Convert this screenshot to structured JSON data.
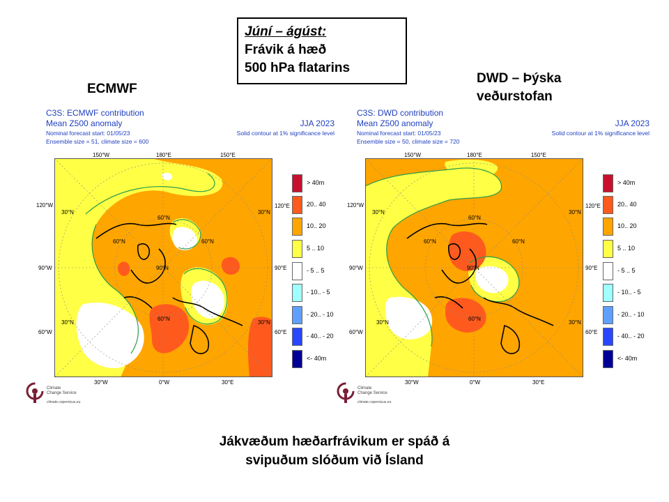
{
  "slide": {
    "title_lines": [
      "Júní – ágúst:",
      "Frávik á hæð",
      "500 hPa flatarins"
    ],
    "footer_lines": [
      "Jákvæðum hæðarfrávikum er spáð á",
      "svipuðum slóðum við Ísland"
    ]
  },
  "panels": [
    {
      "model_title_lines": [
        "ECMWF"
      ],
      "header_line1": "C3S: ECMWF contribution",
      "header_line2": "Mean Z500 anomaly",
      "season": "JJA 2023",
      "sig_note": "Solid contour at 1% significance level",
      "forecast_start": "Nominal forecast start: 01/05/23",
      "ensemble": "Ensemble size = 51, climate size = 600"
    },
    {
      "model_title_lines": [
        "DWD – Þýska",
        "veðurstofan"
      ],
      "header_line1": "C3S: DWD contribution",
      "header_line2": "Mean Z500 anomaly",
      "season": "JJA 2023",
      "sig_note": "Solid contour at 1% significance level",
      "forecast_start": "Nominal forecast start: 01/05/23",
      "ensemble": "Ensemble size = 50, climate size = 720"
    }
  ],
  "map_labels": {
    "top": [
      "150°W",
      "180°E",
      "150°E"
    ],
    "left": [
      "120°W",
      "90°W",
      "60°W"
    ],
    "right": [
      "120°E",
      "90°E",
      "60°E"
    ],
    "bottom": [
      "30°W",
      "0°W",
      "30°E"
    ],
    "lat_30": "30°N",
    "lat_60": "60°N",
    "lat_90": "90°N"
  },
  "legend": [
    {
      "label": "> 40m",
      "color": "#c8102e"
    },
    {
      "label": "20.. 40",
      "color": "#ff5a1e"
    },
    {
      "label": "10.. 20",
      "color": "#ffa500"
    },
    {
      "label": "5 .. 10",
      "color": "#ffff46"
    },
    {
      "label": "- 5 .. 5",
      "color": "#ffffff"
    },
    {
      "label": "- 10.. - 5",
      "color": "#a0ffff"
    },
    {
      "label": "- 20.. - 10",
      "color": "#5fa0ff"
    },
    {
      "label": "- 40.. - 20",
      "color": "#2846ff"
    },
    {
      "label": "<- 40m",
      "color": "#000096"
    }
  ],
  "logo": {
    "line1": "Climate",
    "line2": "Change Service",
    "url": "climate.copernicus.eu"
  }
}
